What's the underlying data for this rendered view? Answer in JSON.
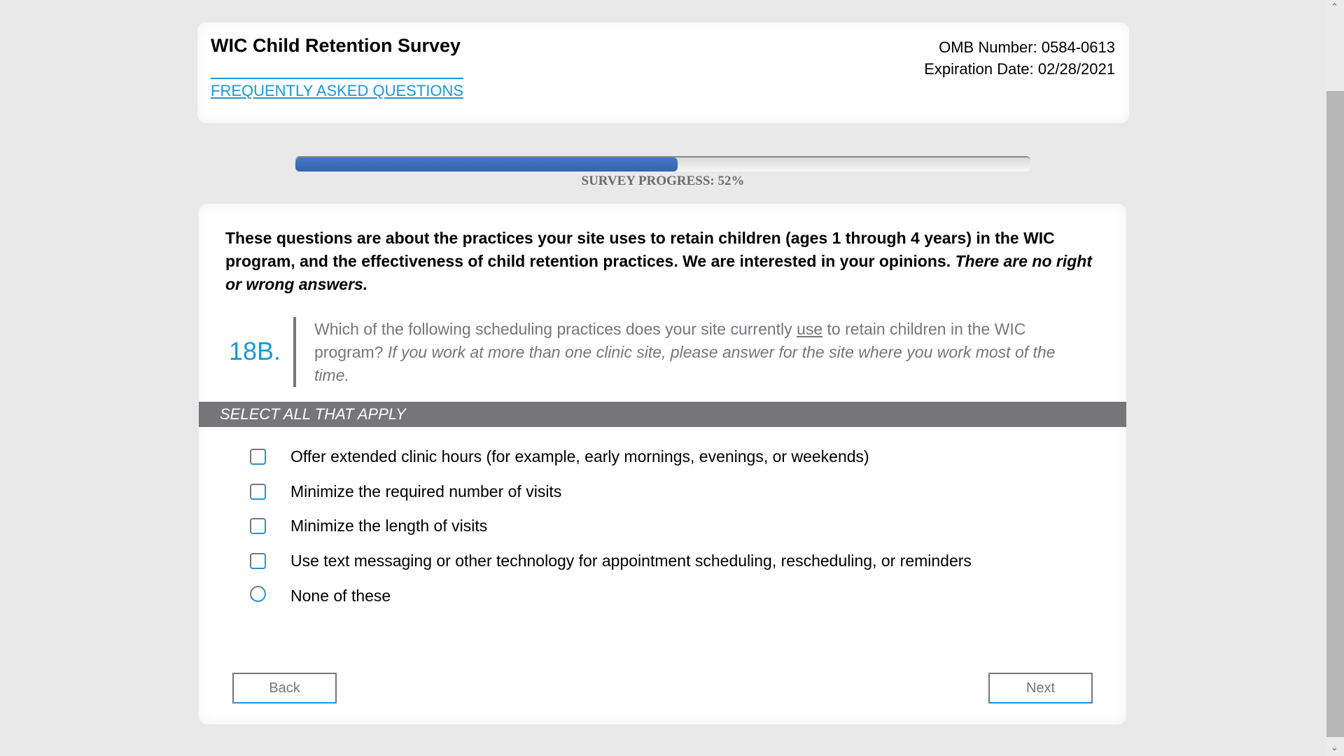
{
  "header": {
    "title": "WIC Child Retention Survey",
    "faq_link": "FREQUENTLY ASKED QUESTIONS",
    "omb": "OMB Number: 0584-0613",
    "expiration": "Expiration Date: 02/28/2021"
  },
  "progress": {
    "label": "SURVEY PROGRESS: 52%",
    "percent": 52,
    "fill_color": "#3a6dbb"
  },
  "intro": {
    "text": "These questions are about the practices your site uses to retain children (ages 1 through 4 years) in the WIC program, and the effectiveness of child retention practices. We are interested in your opinions. ",
    "italic": "There are no right or wrong answers."
  },
  "question": {
    "number": "18B.",
    "text_a": "Which of the following scheduling practices does your site currently ",
    "underlined": "use",
    "text_b": " to retain children in the WIC program? ",
    "italic": "If you work at more than one clinic site, please answer for the site where you work most of the time."
  },
  "instruction": "SELECT ALL THAT APPLY",
  "options": [
    {
      "label": "Offer extended clinic hours (for example, early mornings, evenings, or weekends)",
      "type": "checkbox",
      "checked": false
    },
    {
      "label": "Minimize the required number of visits",
      "type": "checkbox",
      "checked": false
    },
    {
      "label": "Minimize the length of visits",
      "type": "checkbox",
      "checked": false
    },
    {
      "label": "Use text messaging or other technology for appointment scheduling, rescheduling, or reminders",
      "type": "checkbox",
      "checked": false
    },
    {
      "label": "None of these",
      "type": "radio",
      "checked": false
    }
  ],
  "nav": {
    "back": "Back",
    "next": "Next"
  },
  "colors": {
    "accent": "#1a98d5",
    "band": "#76757a"
  }
}
